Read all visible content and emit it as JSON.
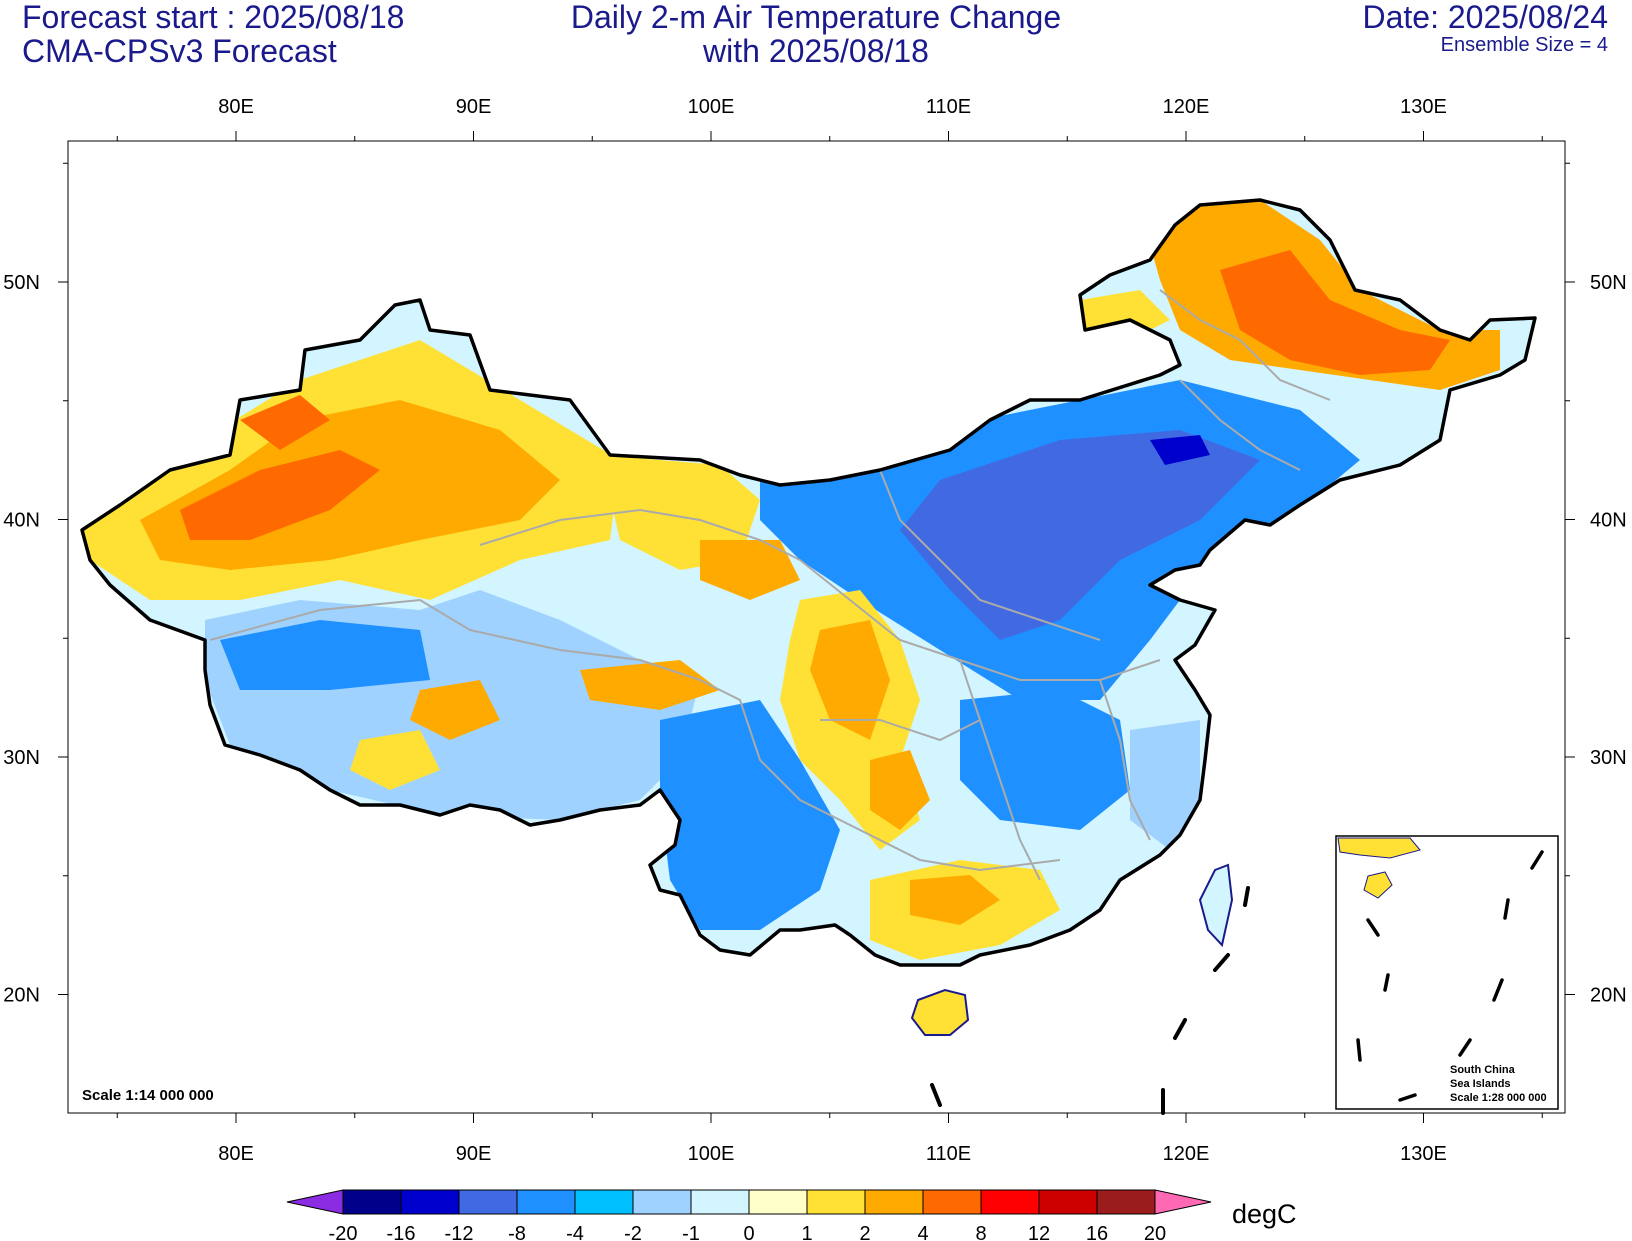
{
  "header": {
    "left_line1": "Forecast start : 2025/08/18",
    "left_line2": "CMA-CPSv3 Forecast",
    "center_line1": "Daily 2-m Air Temperature Change",
    "center_line2": "with 2025/08/18",
    "right_line1": "Date: 2025/08/24",
    "right_line2": "Ensemble Size = 4"
  },
  "axes": {
    "x_ticks": [
      "80E",
      "90E",
      "100E",
      "110E",
      "120E",
      "130E"
    ],
    "y_ticks": [
      "50N",
      "40N",
      "30N",
      "20N"
    ]
  },
  "scale_note": "Scale 1:14 000 000",
  "inset": {
    "line1": "South China",
    "line2": "Sea Islands",
    "line3": "Scale 1:28 000 000"
  },
  "colorbar": {
    "unit": "degC",
    "labels": [
      "-20",
      "-16",
      "-12",
      "-8",
      "-4",
      "-2",
      "-1",
      "0",
      "1",
      "2",
      "4",
      "8",
      "12",
      "16",
      "20"
    ],
    "colors": [
      "#00008b",
      "#0000cd",
      "#4169e1",
      "#1e90ff",
      "#00bfff",
      "#a0d2ff",
      "#d2f5ff",
      "#ffffc8",
      "#ffe135",
      "#ffaa00",
      "#ff6a00",
      "#ff0000",
      "#cd0000",
      "#9b1c1c"
    ],
    "low_color": "#8b2be2",
    "high_color": "#ff69b4"
  },
  "colors": {
    "header_text": "#1a1a8c",
    "china_border": "#000000",
    "province_lines": "#aaaaaa"
  }
}
